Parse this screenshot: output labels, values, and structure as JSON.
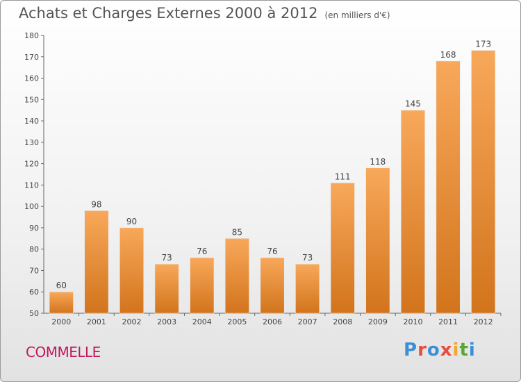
{
  "chart_data": {
    "type": "bar",
    "title": "Achats et Charges Externes 2000 à 2012",
    "subtitle": "(en milliers d'€)",
    "categories": [
      "2000",
      "2001",
      "2002",
      "2003",
      "2004",
      "2005",
      "2006",
      "2007",
      "2008",
      "2009",
      "2010",
      "2011",
      "2012"
    ],
    "values": [
      60,
      98,
      90,
      73,
      76,
      85,
      76,
      73,
      111,
      118,
      145,
      168,
      173
    ],
    "ylim": [
      50,
      180
    ],
    "yticks": [
      50,
      60,
      70,
      80,
      90,
      100,
      110,
      120,
      130,
      140,
      150,
      160,
      170,
      180
    ],
    "grid": false,
    "xlabel": "",
    "ylabel": ""
  },
  "footer": {
    "commune": "COMMELLE",
    "logo_letters": [
      {
        "ch": "P",
        "color": "#3a8fd6"
      },
      {
        "ch": "r",
        "color": "#e84c3d"
      },
      {
        "ch": "o",
        "color": "#3a8fd6"
      },
      {
        "ch": "x",
        "color": "#e84c3d"
      },
      {
        "ch": "i",
        "color": "#f2a82e"
      },
      {
        "ch": "t",
        "color": "#5aa830"
      },
      {
        "ch": "i",
        "color": "#3a8fd6"
      }
    ]
  },
  "colors": {
    "bar_top": "#f8a85a",
    "bar_bottom": "#d2741c",
    "axis": "#666666",
    "text": "#444444"
  }
}
